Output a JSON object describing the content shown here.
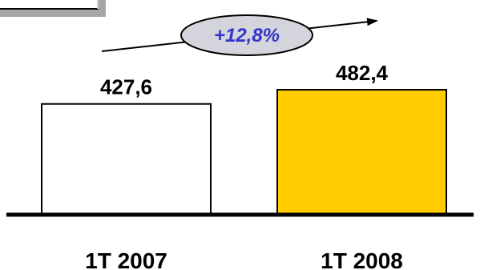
{
  "chart_data": {
    "type": "bar",
    "categories": [
      "1T 2007",
      "1T 2008"
    ],
    "values": [
      427.6,
      482.4
    ],
    "value_labels": [
      "427,6",
      "482,4"
    ],
    "bar_colors": [
      "#ffffff",
      "#ffcc00"
    ],
    "bar_stroke": "#000000",
    "ylim": [
      0,
      482.4
    ],
    "growth_annotation": "+12,8%",
    "growth_text_color": "#3333cc",
    "growth_fill_color": "#d4d4dc"
  }
}
